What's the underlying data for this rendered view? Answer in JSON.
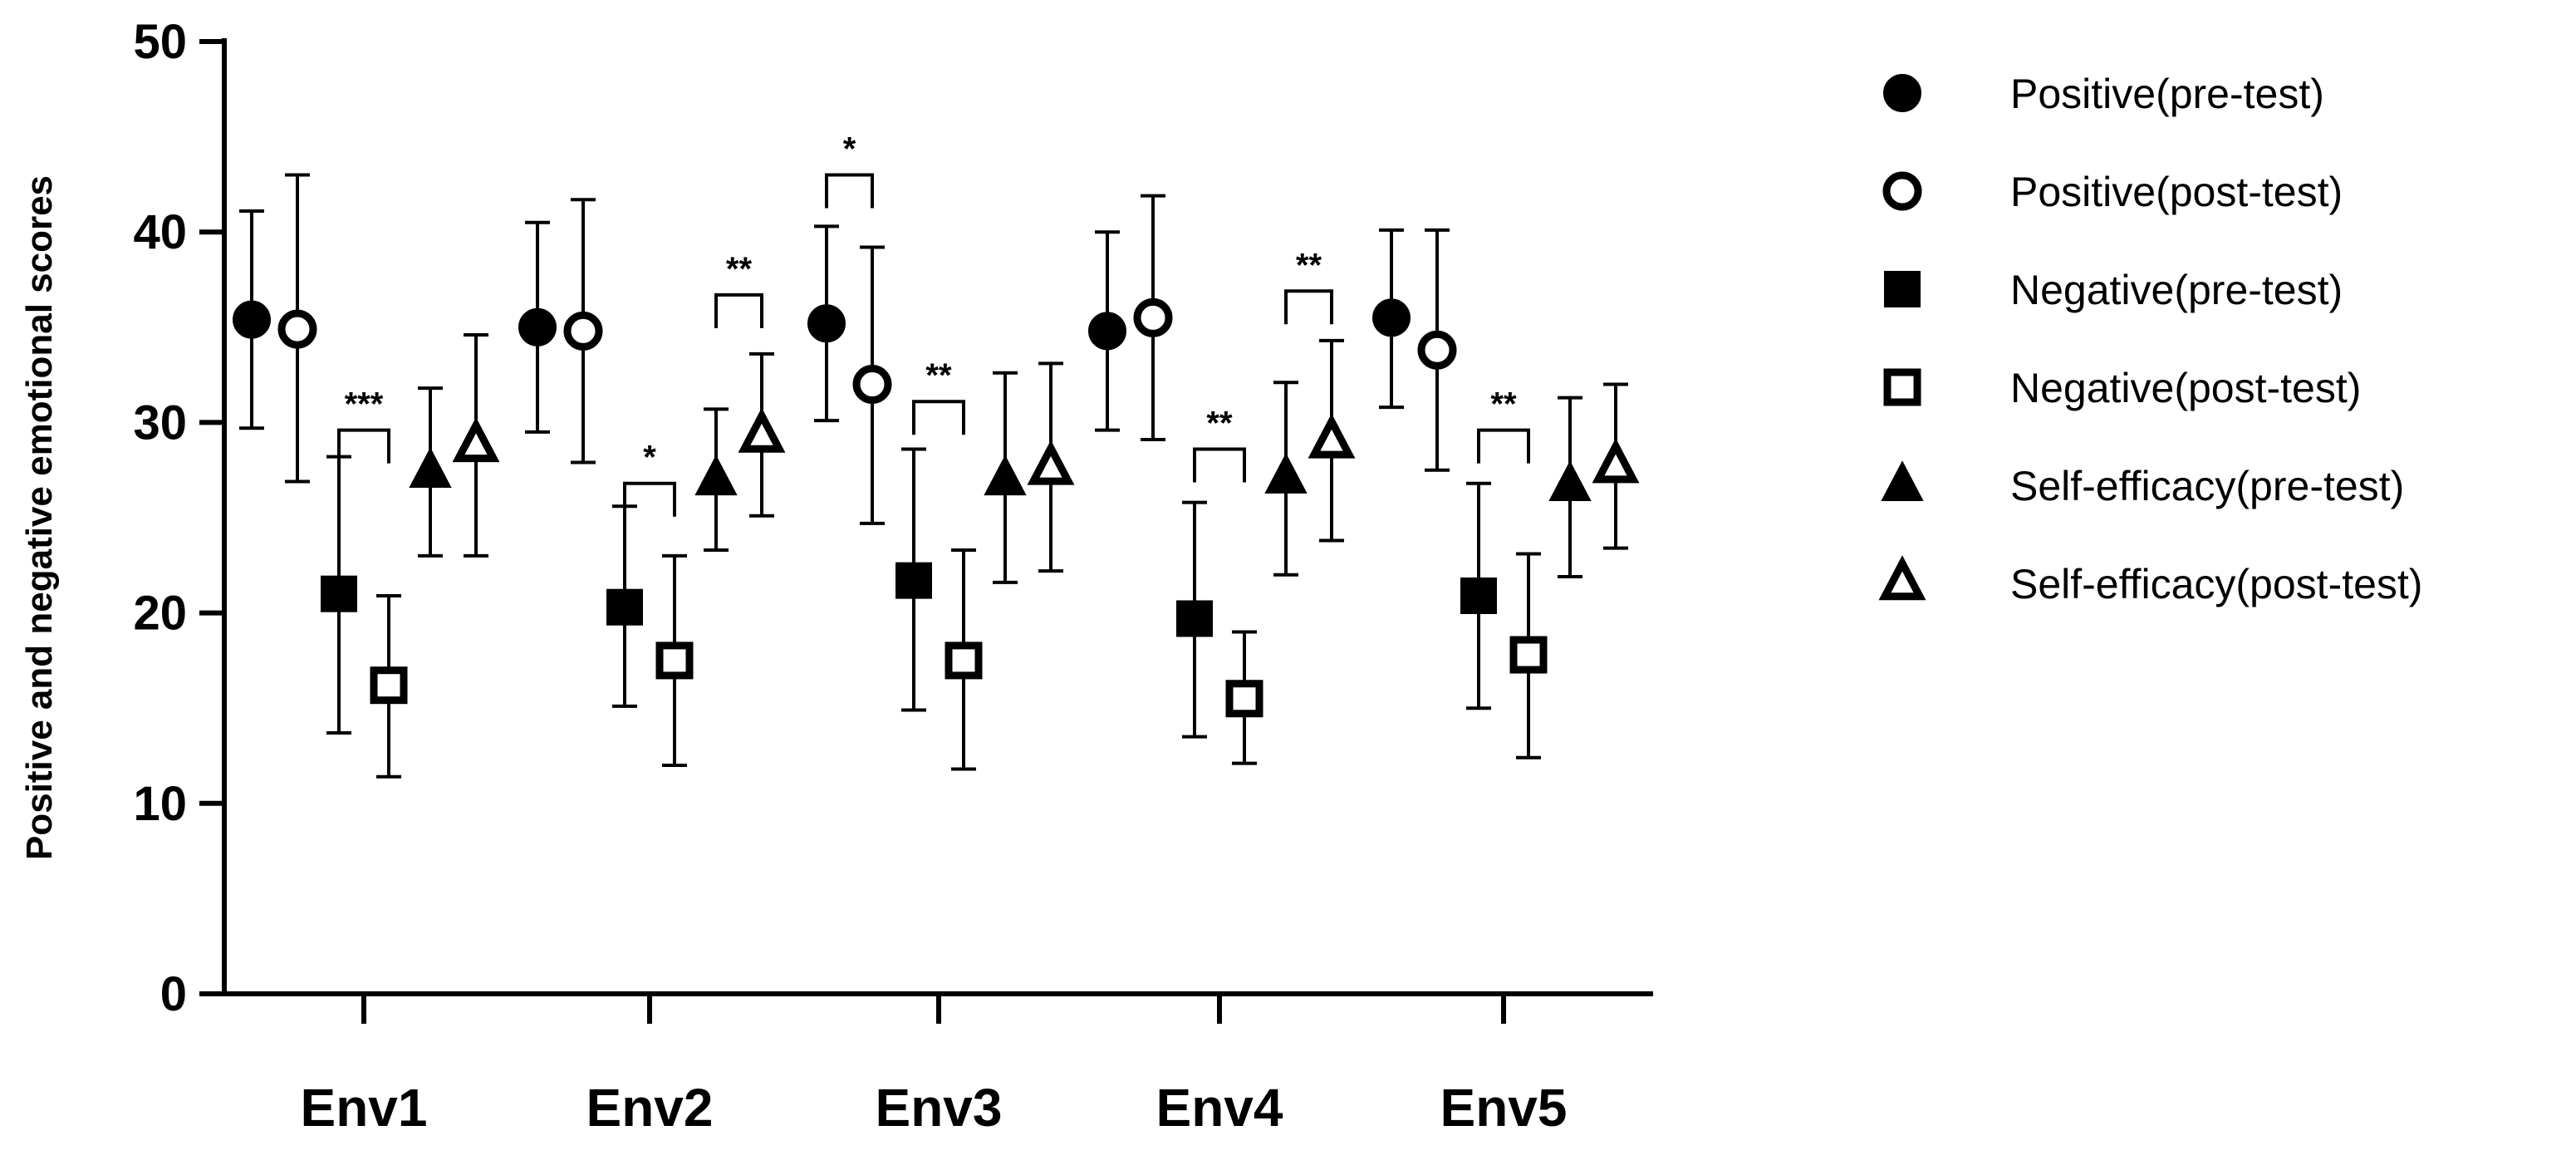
{
  "chart_data": {
    "type": "scatter",
    "title": "",
    "xlabel": "",
    "ylabel": "Positive and negative emotional scores",
    "ylim": [
      0,
      50
    ],
    "yticks": [
      0,
      10,
      20,
      30,
      40,
      50
    ],
    "grid": false,
    "legend_position": "right",
    "error_bars": true,
    "categories": [
      "Env1",
      "Env2",
      "Env3",
      "Env4",
      "Env5"
    ],
    "series": [
      {
        "name": "Positive(pre-test)",
        "marker": "circle-filled",
        "means": [
          35.4,
          35.0,
          35.2,
          34.8,
          35.5
        ],
        "lower": [
          29.7,
          29.5,
          30.1,
          29.6,
          30.8
        ],
        "upper": [
          41.1,
          40.5,
          40.3,
          40.0,
          40.1
        ]
      },
      {
        "name": "Positive(post-test)",
        "marker": "circle-open",
        "means": [
          34.9,
          34.8,
          32.0,
          35.5,
          33.8
        ],
        "lower": [
          26.9,
          27.9,
          24.7,
          29.1,
          27.5
        ],
        "upper": [
          43.0,
          41.7,
          39.2,
          41.9,
          40.1
        ]
      },
      {
        "name": "Negative(pre-test)",
        "marker": "square-filled",
        "means": [
          21.0,
          20.3,
          21.7,
          19.7,
          20.9
        ],
        "lower": [
          13.7,
          15.1,
          14.9,
          13.5,
          15.0
        ],
        "upper": [
          28.2,
          25.6,
          28.6,
          25.8,
          26.8
        ]
      },
      {
        "name": "Negative(post-test)",
        "marker": "square-open",
        "means": [
          16.2,
          17.5,
          17.5,
          15.5,
          17.8
        ],
        "lower": [
          11.4,
          12.0,
          11.8,
          12.1,
          12.4
        ],
        "upper": [
          20.9,
          23.0,
          23.3,
          19.0,
          23.1
        ]
      },
      {
        "name": "Self-efficacy(pre-test)",
        "marker": "triangle-filled",
        "means": [
          27.4,
          27.0,
          27.0,
          27.1,
          26.7
        ],
        "lower": [
          23.0,
          23.3,
          21.6,
          22.0,
          21.9
        ],
        "upper": [
          31.8,
          30.7,
          32.6,
          32.1,
          31.3
        ]
      },
      {
        "name": "Self-efficacy(post-test)",
        "marker": "triangle-open",
        "means": [
          28.8,
          29.3,
          27.6,
          29.0,
          27.7
        ],
        "lower": [
          23.0,
          25.1,
          22.2,
          23.8,
          23.4
        ],
        "upper": [
          34.6,
          33.6,
          33.1,
          34.3,
          32.0
        ]
      }
    ],
    "significance": [
      {
        "category": "Env1",
        "pair": [
          2,
          3
        ],
        "label": "***",
        "level": 29.6
      },
      {
        "category": "Env2",
        "pair": [
          2,
          3
        ],
        "label": "*",
        "level": 26.8
      },
      {
        "category": "Env2",
        "pair": [
          4,
          5
        ],
        "label": "**",
        "level": 36.7
      },
      {
        "category": "Env3",
        "pair": [
          0,
          1
        ],
        "label": "*",
        "level": 43.0
      },
      {
        "category": "Env3",
        "pair": [
          2,
          3
        ],
        "label": "**",
        "level": 31.1
      },
      {
        "category": "Env4",
        "pair": [
          2,
          3
        ],
        "label": "**",
        "level": 28.6
      },
      {
        "category": "Env4",
        "pair": [
          4,
          5
        ],
        "label": "**",
        "level": 36.9
      },
      {
        "category": "Env5",
        "pair": [
          2,
          3
        ],
        "label": "**",
        "level": 29.6
      }
    ]
  }
}
